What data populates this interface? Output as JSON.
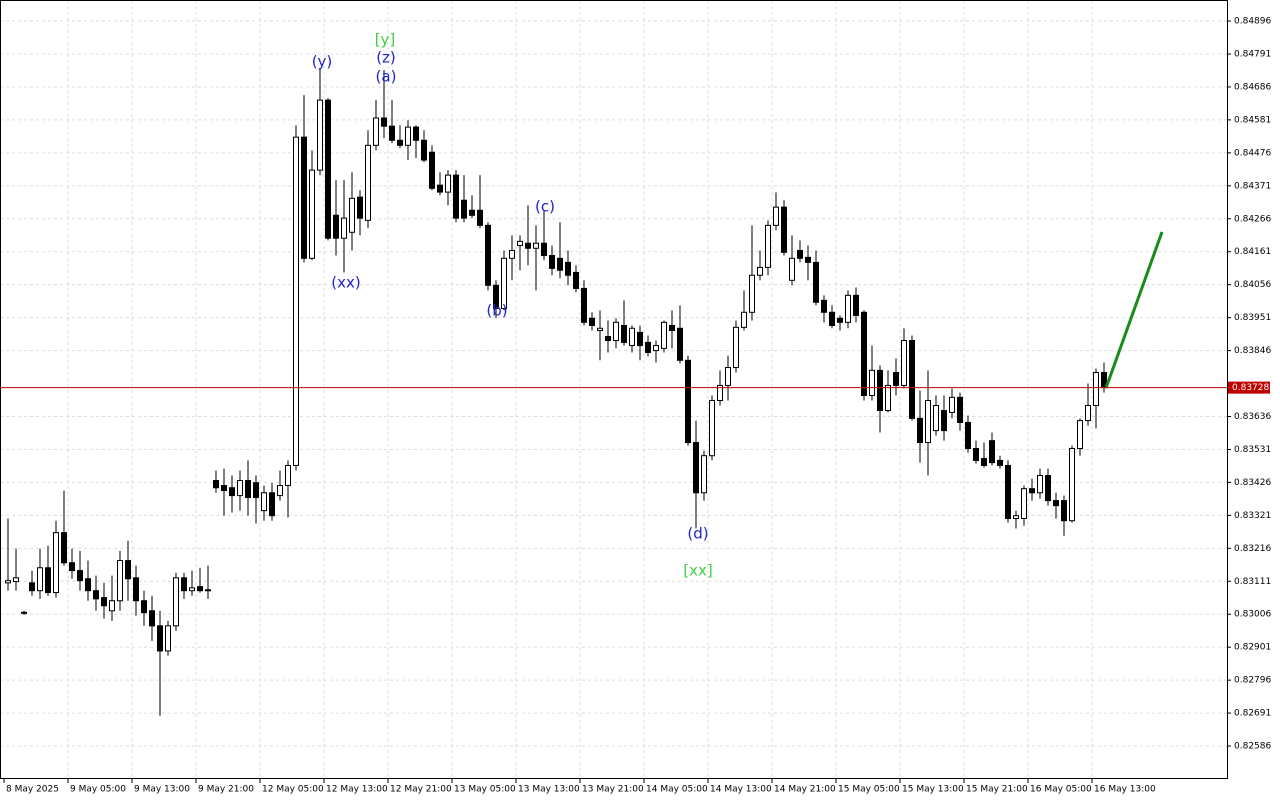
{
  "chart_data": {
    "type": "candlestick",
    "candles": [
      [
        0.83106,
        0.83311,
        0.83081,
        0.83113
      ],
      [
        0.8311,
        0.83215,
        0.83081,
        0.83122
      ],
      [
        0.83011,
        0.83017,
        0.83004,
        0.83012
      ],
      [
        0.83106,
        0.83145,
        0.83065,
        0.83081
      ],
      [
        0.83081,
        0.83215,
        0.83055,
        0.83154
      ],
      [
        0.83154,
        0.83224,
        0.83065,
        0.83075
      ],
      [
        0.83075,
        0.83304,
        0.83059,
        0.83266
      ],
      [
        0.83266,
        0.834,
        0.83161,
        0.8317
      ],
      [
        0.8317,
        0.83215,
        0.83119,
        0.83145
      ],
      [
        0.83145,
        0.83208,
        0.83081,
        0.83113
      ],
      [
        0.83119,
        0.83177,
        0.83049,
        0.83081
      ],
      [
        0.83081,
        0.83129,
        0.83017,
        0.83055
      ],
      [
        0.83059,
        0.83106,
        0.82992,
        0.83033
      ],
      [
        0.83017,
        0.83129,
        0.82985,
        0.83049
      ],
      [
        0.83049,
        0.83208,
        0.83017,
        0.83177
      ],
      [
        0.83177,
        0.8324,
        0.83049,
        0.83119
      ],
      [
        0.83122,
        0.83161,
        0.83001,
        0.83049
      ],
      [
        0.83049,
        0.83081,
        0.82969,
        0.83011
      ],
      [
        0.83017,
        0.83065,
        0.82921,
        0.82969
      ],
      [
        0.82969,
        0.83017,
        0.82682,
        0.82889
      ],
      [
        0.82889,
        0.82985,
        0.82874,
        0.82969
      ],
      [
        0.82969,
        0.83138,
        0.82953,
        0.83122
      ],
      [
        0.83122,
        0.83138,
        0.83055,
        0.83081
      ],
      [
        0.83081,
        0.83145,
        0.83065,
        0.8309
      ],
      [
        0.83094,
        0.83154,
        0.83075,
        0.83081
      ],
      [
        0.83081,
        0.83161,
        0.83055,
        0.83084
      ],
      [
        0.83432,
        0.83464,
        0.83393,
        0.83409
      ],
      [
        0.83416,
        0.8347,
        0.8332,
        0.834
      ],
      [
        0.83409,
        0.83448,
        0.8333,
        0.83384
      ],
      [
        0.83384,
        0.83464,
        0.83336,
        0.83432
      ],
      [
        0.83432,
        0.83496,
        0.8332,
        0.83378
      ],
      [
        0.83425,
        0.83448,
        0.83295,
        0.83378
      ],
      [
        0.83336,
        0.83416,
        0.83304,
        0.83393
      ],
      [
        0.83393,
        0.83425,
        0.83304,
        0.8332
      ],
      [
        0.83384,
        0.83464,
        0.83368,
        0.83416
      ],
      [
        0.83416,
        0.83496,
        0.83314,
        0.8348
      ],
      [
        0.8348,
        0.84564,
        0.83464,
        0.84526
      ],
      [
        0.84526,
        0.8466,
        0.84127,
        0.8414
      ],
      [
        0.8414,
        0.84484,
        0.84134,
        0.84421
      ],
      [
        0.84421,
        0.84746,
        0.84405,
        0.84644
      ],
      [
        0.84644,
        0.8465,
        0.84197,
        0.84204
      ],
      [
        0.84277,
        0.84389,
        0.84149,
        0.84204
      ],
      [
        0.84204,
        0.84389,
        0.84095,
        0.84268
      ],
      [
        0.84223,
        0.84414,
        0.84165,
        0.84331
      ],
      [
        0.84335,
        0.84357,
        0.84213,
        0.84268
      ],
      [
        0.84261,
        0.84548,
        0.84236,
        0.845
      ],
      [
        0.845,
        0.84644,
        0.84484,
        0.84587
      ],
      [
        0.84587,
        0.8474,
        0.84523,
        0.84561
      ],
      [
        0.84561,
        0.84644,
        0.84507,
        0.84516
      ],
      [
        0.84516,
        0.84564,
        0.84491,
        0.845
      ],
      [
        0.845,
        0.8458,
        0.84453,
        0.84558
      ],
      [
        0.84558,
        0.84564,
        0.84459,
        0.84516
      ],
      [
        0.84516,
        0.84548,
        0.84446,
        0.84453
      ],
      [
        0.84478,
        0.845,
        0.84357,
        0.84363
      ],
      [
        0.84373,
        0.84414,
        0.84341,
        0.84351
      ],
      [
        0.84351,
        0.84421,
        0.84309,
        0.84405
      ],
      [
        0.84405,
        0.84421,
        0.84255,
        0.84268
      ],
      [
        0.84325,
        0.84405,
        0.84255,
        0.84268
      ],
      [
        0.84293,
        0.84341,
        0.84268,
        0.84277
      ],
      [
        0.84293,
        0.84405,
        0.84236,
        0.84245
      ],
      [
        0.84245,
        0.84255,
        0.84038,
        0.84054
      ],
      [
        0.84054,
        0.8407,
        0.83949,
        0.8398
      ],
      [
        0.8398,
        0.84165,
        0.83974,
        0.8414
      ],
      [
        0.8414,
        0.84213,
        0.8407,
        0.84165
      ],
      [
        0.84181,
        0.84213,
        0.84102,
        0.84194
      ],
      [
        0.84188,
        0.84309,
        0.84118,
        0.84172
      ],
      [
        0.84172,
        0.84245,
        0.84038,
        0.84188
      ],
      [
        0.84188,
        0.84293,
        0.84134,
        0.84149
      ],
      [
        0.84149,
        0.84181,
        0.84086,
        0.84108
      ],
      [
        0.8414,
        0.84255,
        0.84076,
        0.84102
      ],
      [
        0.84127,
        0.84165,
        0.84054,
        0.84086
      ],
      [
        0.84095,
        0.84118,
        0.84032,
        0.84044
      ],
      [
        0.84044,
        0.8407,
        0.83926,
        0.83936
      ],
      [
        0.83949,
        0.83968,
        0.8391,
        0.83926
      ],
      [
        0.8391,
        0.83974,
        0.83815,
        0.83917
      ],
      [
        0.83891,
        0.83942,
        0.8384,
        0.83878
      ],
      [
        0.83878,
        0.83949,
        0.83853,
        0.83936
      ],
      [
        0.83926,
        0.84006,
        0.83862,
        0.83872
      ],
      [
        0.83862,
        0.83926,
        0.8384,
        0.83917
      ],
      [
        0.83904,
        0.83926,
        0.83815,
        0.83862
      ],
      [
        0.83872,
        0.83894,
        0.83827,
        0.8384
      ],
      [
        0.83846,
        0.83878,
        0.83808,
        0.83862
      ],
      [
        0.83853,
        0.83942,
        0.8384,
        0.83936
      ],
      [
        0.83926,
        0.83974,
        0.83853,
        0.8391
      ],
      [
        0.83917,
        0.8399,
        0.83805,
        0.83815
      ],
      [
        0.83815,
        0.8383,
        0.83543,
        0.83553
      ],
      [
        0.83553,
        0.83623,
        0.83279,
        0.83393
      ],
      [
        0.83393,
        0.83527,
        0.83368,
        0.83511
      ],
      [
        0.83511,
        0.83703,
        0.83496,
        0.83687
      ],
      [
        0.83687,
        0.83783,
        0.83671,
        0.83735
      ],
      [
        0.83735,
        0.8383,
        0.83687,
        0.83792
      ],
      [
        0.83792,
        0.83942,
        0.83776,
        0.8392
      ],
      [
        0.8392,
        0.84038,
        0.8391,
        0.83968
      ],
      [
        0.83968,
        0.84245,
        0.83942,
        0.84086
      ],
      [
        0.84086,
        0.84165,
        0.8407,
        0.84111
      ],
      [
        0.84111,
        0.84261,
        0.84086,
        0.84245
      ],
      [
        0.84245,
        0.8435,
        0.84229,
        0.84303
      ],
      [
        0.84303,
        0.84325,
        0.84149,
        0.84159
      ],
      [
        0.8407,
        0.84213,
        0.84054,
        0.8414
      ],
      [
        0.84165,
        0.84197,
        0.84127,
        0.8414
      ],
      [
        0.84143,
        0.84181,
        0.8407,
        0.84127
      ],
      [
        0.84127,
        0.84165,
        0.8399,
        0.84
      ],
      [
        0.84006,
        0.84022,
        0.83936,
        0.83968
      ],
      [
        0.83968,
        0.8399,
        0.83917,
        0.83926
      ],
      [
        0.83949,
        0.83958,
        0.8391,
        0.83936
      ],
      [
        0.83936,
        0.84038,
        0.83917,
        0.84022
      ],
      [
        0.84022,
        0.84047,
        0.83936,
        0.83958
      ],
      [
        0.83968,
        0.83974,
        0.83687,
        0.83703
      ],
      [
        0.83703,
        0.83862,
        0.83687,
        0.83783
      ],
      [
        0.83783,
        0.83799,
        0.83585,
        0.83655
      ],
      [
        0.83655,
        0.83783,
        0.83649,
        0.83735
      ],
      [
        0.83776,
        0.83821,
        0.83703,
        0.83735
      ],
      [
        0.83735,
        0.83917,
        0.83725,
        0.83878
      ],
      [
        0.83878,
        0.83894,
        0.83623,
        0.8363
      ],
      [
        0.8363,
        0.83719,
        0.83489,
        0.83553
      ],
      [
        0.83553,
        0.83783,
        0.83448,
        0.83687
      ],
      [
        0.83591,
        0.83703,
        0.83575,
        0.83671
      ],
      [
        0.83655,
        0.83703,
        0.83559,
        0.83591
      ],
      [
        0.83649,
        0.83725,
        0.8363,
        0.83697
      ],
      [
        0.83697,
        0.83712,
        0.83591,
        0.83617
      ],
      [
        0.83617,
        0.83639,
        0.83521,
        0.83534
      ],
      [
        0.83534,
        0.83559,
        0.83486,
        0.83496
      ],
      [
        0.83502,
        0.83553,
        0.83473,
        0.8348
      ],
      [
        0.83559,
        0.83585,
        0.8348,
        0.83489
      ],
      [
        0.83496,
        0.83511,
        0.8347,
        0.8348
      ],
      [
        0.8348,
        0.83496,
        0.83298,
        0.83311
      ],
      [
        0.83311,
        0.83336,
        0.83279,
        0.8332
      ],
      [
        0.83311,
        0.83416,
        0.83288,
        0.83406
      ],
      [
        0.83406,
        0.83438,
        0.83368,
        0.83393
      ],
      [
        0.83393,
        0.8347,
        0.83374,
        0.83448
      ],
      [
        0.83448,
        0.8347,
        0.83352,
        0.83368
      ],
      [
        0.83368,
        0.83393,
        0.83311,
        0.83352
      ],
      [
        0.83368,
        0.83384,
        0.83256,
        0.83304
      ],
      [
        0.83304,
        0.83543,
        0.83298,
        0.83534
      ],
      [
        0.83534,
        0.8363,
        0.83511,
        0.83623
      ],
      [
        0.83623,
        0.83741,
        0.83607,
        0.83671
      ],
      [
        0.83671,
        0.83789,
        0.83598,
        0.83776
      ],
      [
        0.83776,
        0.83808,
        0.83712,
        0.83728
      ]
    ],
    "ylim": [
      0.82481,
      0.84963
    ],
    "yticks": [
      0.84896,
      0.84791,
      0.84686,
      0.84581,
      0.84476,
      0.84371,
      0.84266,
      0.84161,
      0.84056,
      0.83951,
      0.83846,
      0.83636,
      0.83531,
      0.83426,
      0.83321,
      0.83216,
      0.83111,
      0.83006,
      0.82901,
      0.82796,
      0.82691,
      0.82586
    ],
    "x_labels": [
      "8 May 2025",
      "9 May 05:00",
      "9 May 13:00",
      "9 May 21:00",
      "12 May 05:00",
      "12 May 13:00",
      "12 May 21:00",
      "13 May 05:00",
      "13 May 13:00",
      "13 May 21:00",
      "14 May 05:00",
      "14 May 13:00",
      "14 May 21:00",
      "15 May 05:00",
      "15 May 13:00",
      "15 May 21:00",
      "16 May 05:00",
      "16 May 13:00"
    ],
    "current_price": 0.83728,
    "current_price_color": "#c00000",
    "grid": true,
    "annotations": [
      {
        "text": "[y]",
        "color": "#44cc44"
      },
      {
        "text": "(y)",
        "color": "#2222cc"
      },
      {
        "text": "(z)",
        "color": "#2222cc"
      },
      {
        "text": "(a)",
        "color": "#2222cc"
      },
      {
        "text": "(xx)",
        "color": "#2222cc"
      },
      {
        "text": "(b)",
        "color": "#2222cc"
      },
      {
        "text": "(c)",
        "color": "#2222cc"
      },
      {
        "text": "(d)",
        "color": "#2222cc"
      },
      {
        "text": "[xx]",
        "color": "#44cc44"
      }
    ]
  }
}
